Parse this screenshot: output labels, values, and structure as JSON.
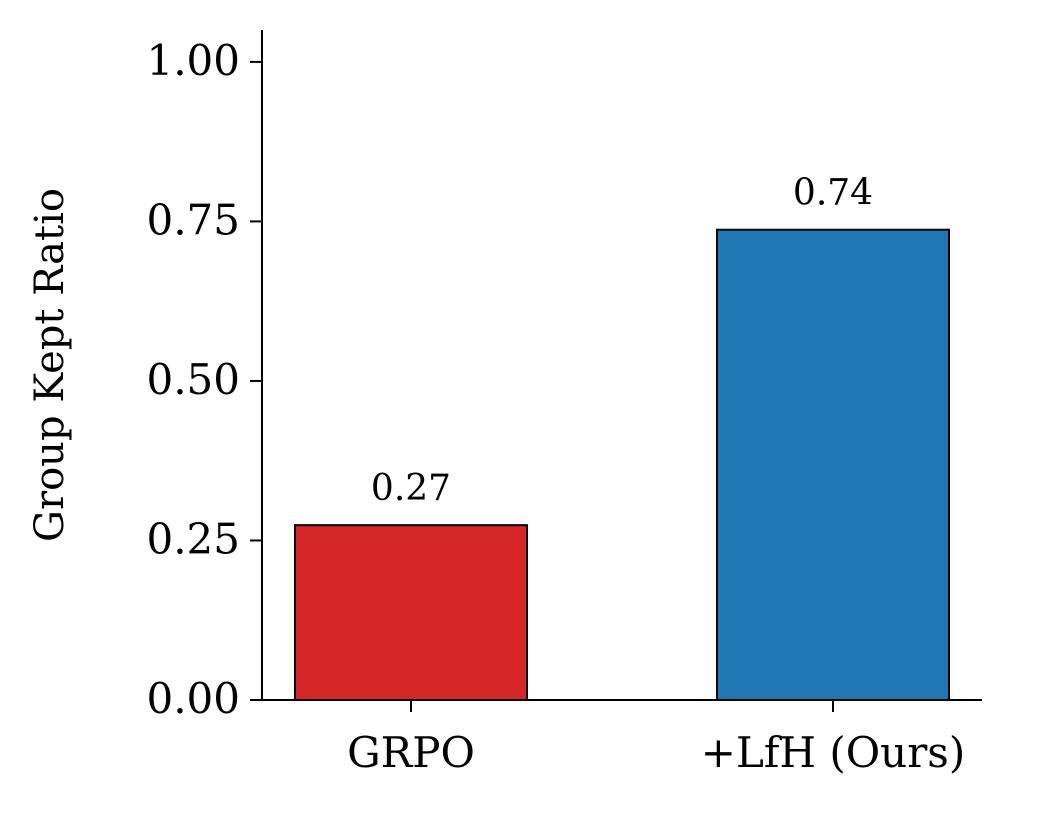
{
  "chart_data": {
    "type": "bar",
    "y_label": "Group Kept Ratio",
    "categories": [
      "GRPO",
      "+LfH (Ours)"
    ],
    "values": [
      0.274,
      0.737
    ],
    "value_labels": [
      "0.27",
      "0.74"
    ],
    "colors": [
      "#d62728",
      "#1f77b4"
    ],
    "ylim": [
      0,
      1.05
    ],
    "yticks": [
      {
        "value": 0,
        "label": "0.00"
      },
      {
        "value": 0.25,
        "label": "0.25"
      },
      {
        "value": 0.5,
        "label": "0.50"
      },
      {
        "value": 0.75,
        "label": "0.75"
      },
      {
        "value": 1,
        "label": "1.00"
      }
    ],
    "grid": false
  }
}
